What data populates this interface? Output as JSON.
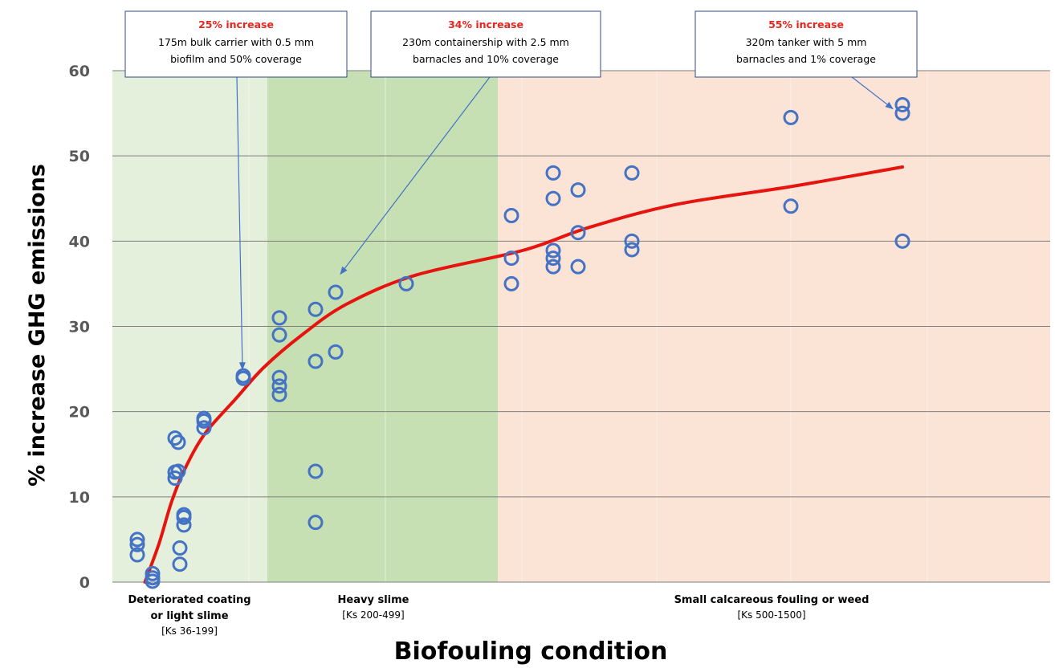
{
  "colors": {
    "zone1": "#e4efdc",
    "zone2": "#c6e0b4",
    "zone3": "#fbe3d6",
    "marker": "#4472c4",
    "curve": "#e5140f",
    "grid": "#7f7f7f",
    "annotation_head": "#e8251f"
  },
  "chart_data": {
    "type": "scatter",
    "ylabel": "% increase GHG emissions",
    "xlabel": "Biofouling condition",
    "ylim": [
      0,
      60
    ],
    "yticks": [
      0,
      10,
      20,
      30,
      40,
      50,
      60
    ],
    "grid": "horizontal",
    "x_scale": "categorical-ordered (no numeric tick labels)",
    "x_categories": [
      {
        "label": "Deteriorated coating or light slime",
        "label_lines": [
          "Deteriorated coating",
          "or light slime"
        ],
        "range": "[Ks 36-199]"
      },
      {
        "label": "Heavy slime",
        "label_lines": [
          "Heavy slime"
        ],
        "range": "[Ks 200-499]"
      },
      {
        "label": "Small calcareous fouling or weed",
        "label_lines": [
          "Small calcareous fouling or weed"
        ],
        "range": "[Ks 500-1500]"
      }
    ],
    "points": [
      {
        "x": 36,
        "y": 5.0
      },
      {
        "x": 36,
        "y": 4.4
      },
      {
        "x": 36,
        "y": 3.2
      },
      {
        "x": 50,
        "y": 1.0
      },
      {
        "x": 50,
        "y": 0.5
      },
      {
        "x": 50,
        "y": 0.1
      },
      {
        "x": 85,
        "y": 16.9
      },
      {
        "x": 85,
        "y": 12.9
      },
      {
        "x": 85,
        "y": 12.2
      },
      {
        "x": 90,
        "y": 16.4
      },
      {
        "x": 90,
        "y": 13.0
      },
      {
        "x": 92,
        "y": 4.0
      },
      {
        "x": 92,
        "y": 2.1
      },
      {
        "x": 97,
        "y": 7.9
      },
      {
        "x": 97,
        "y": 7.6
      },
      {
        "x": 97,
        "y": 6.7
      },
      {
        "x": 128,
        "y": 19.2
      },
      {
        "x": 128,
        "y": 18.9
      },
      {
        "x": 128,
        "y": 18.1
      },
      {
        "x": 180,
        "y": 24.2
      },
      {
        "x": 180,
        "y": 23.9
      },
      {
        "x": 250,
        "y": 31.0
      },
      {
        "x": 250,
        "y": 29.0
      },
      {
        "x": 250,
        "y": 24.0
      },
      {
        "x": 250,
        "y": 23.0
      },
      {
        "x": 250,
        "y": 22.0
      },
      {
        "x": 330,
        "y": 32.0
      },
      {
        "x": 330,
        "y": 25.9
      },
      {
        "x": 330,
        "y": 13.0
      },
      {
        "x": 330,
        "y": 7.0
      },
      {
        "x": 380,
        "y": 34.0
      },
      {
        "x": 380,
        "y": 27.0
      },
      {
        "x": 510,
        "y": 35.0
      },
      {
        "x": 625,
        "y": 43.0
      },
      {
        "x": 625,
        "y": 38.0
      },
      {
        "x": 625,
        "y": 35.0
      },
      {
        "x": 720,
        "y": 48.0
      },
      {
        "x": 720,
        "y": 45.0
      },
      {
        "x": 720,
        "y": 38.9
      },
      {
        "x": 720,
        "y": 38.0
      },
      {
        "x": 720,
        "y": 37.0
      },
      {
        "x": 775,
        "y": 46.0
      },
      {
        "x": 775,
        "y": 41.0
      },
      {
        "x": 775,
        "y": 37.0
      },
      {
        "x": 900,
        "y": 48.0
      },
      {
        "x": 900,
        "y": 40.0
      },
      {
        "x": 900,
        "y": 39.0
      },
      {
        "x": 1260,
        "y": 54.5
      },
      {
        "x": 1260,
        "y": 44.1
      },
      {
        "x": 1510,
        "y": 56.0
      },
      {
        "x": 1510,
        "y": 55.0
      },
      {
        "x": 1510,
        "y": 40.0
      }
    ],
    "trend": {
      "type": "logarithmic",
      "points": [
        {
          "x": 43,
          "y": 0
        },
        {
          "x": 60,
          "y": 4.5
        },
        {
          "x": 80,
          "y": 9.5
        },
        {
          "x": 100,
          "y": 13.5
        },
        {
          "x": 130,
          "y": 17.5
        },
        {
          "x": 170,
          "y": 21.5
        },
        {
          "x": 220,
          "y": 25.2
        },
        {
          "x": 300,
          "y": 29.0
        },
        {
          "x": 400,
          "y": 32.6
        },
        {
          "x": 520,
          "y": 36.0
        },
        {
          "x": 650,
          "y": 38.9
        },
        {
          "x": 800,
          "y": 41.6
        },
        {
          "x": 1000,
          "y": 44.3
        },
        {
          "x": 1260,
          "y": 46.4
        },
        {
          "x": 1510,
          "y": 48.7
        }
      ]
    },
    "annotations": [
      {
        "headline": "25% increase",
        "line1": "175m bulk carrier with 0.5 mm",
        "line2": "biofilm and 50% coverage",
        "target": {
          "x": 180,
          "y": 24
        }
      },
      {
        "headline": "34% increase",
        "line1": "230m containership with 2.5 mm",
        "line2": "barnacles and 10% coverage",
        "target": {
          "x": 380,
          "y": 35
        }
      },
      {
        "headline": "55% increase",
        "line1": "320m tanker with 5 mm",
        "line2": "barnacles and 1% coverage",
        "target": {
          "x": 1510,
          "y": 56
        }
      }
    ]
  }
}
